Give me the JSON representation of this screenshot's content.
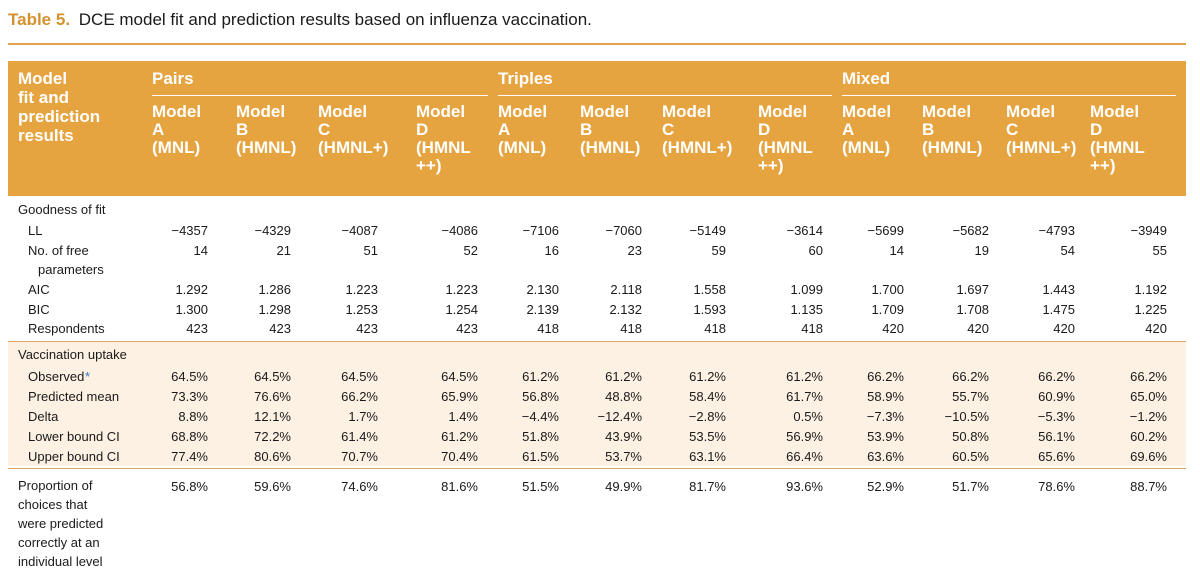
{
  "caption": {
    "number": "Table 5.",
    "text": "DCE model fit and prediction results based on influenza vaccination."
  },
  "header": {
    "stub": "Model\nfit and\nprediction\nresults",
    "groups": [
      "Pairs",
      "Triples",
      "Mixed"
    ],
    "columns": [
      "Model\nA\n(MNL)",
      "Model\nB\n(HMNL)",
      "Model\nC\n(HMNL+)",
      "Model\nD\n(HMNL\n++)",
      "Model\nA\n(MNL)",
      "Model\nB\n(HMNL)",
      "Model\nC\n(HMNL+)",
      "Model\nD\n(HMNL\n++)",
      "Model\nA\n(MNL)",
      "Model\nB\n(HMNL)",
      "Model\nC\n(HMNL+)",
      "Model\nD\n(HMNL\n++)"
    ]
  },
  "goodness": {
    "title": "Goodness of fit",
    "rows": [
      {
        "label": "LL",
        "values": [
          "−4357",
          "−4329",
          "−4087",
          "−4086",
          "−7106",
          "−7060",
          "−5149",
          "−3614",
          "−5699",
          "−5682",
          "−4793",
          "−3949"
        ]
      },
      {
        "label": "No. of free",
        "label2": "parameters",
        "values": [
          "14",
          "21",
          "51",
          "52",
          "16",
          "23",
          "59",
          "60",
          "14",
          "19",
          "54",
          "55"
        ]
      },
      {
        "label": "AIC",
        "values": [
          "1.292",
          "1.286",
          "1.223",
          "1.223",
          "2.130",
          "2.118",
          "1.558",
          "1.099",
          "1.700",
          "1.697",
          "1.443",
          "1.192"
        ]
      },
      {
        "label": "BIC",
        "values": [
          "1.300",
          "1.298",
          "1.253",
          "1.254",
          "2.139",
          "2.132",
          "1.593",
          "1.135",
          "1.709",
          "1.708",
          "1.475",
          "1.225"
        ]
      },
      {
        "label": "Respondents",
        "values": [
          "423",
          "423",
          "423",
          "423",
          "418",
          "418",
          "418",
          "418",
          "420",
          "420",
          "420",
          "420"
        ]
      }
    ]
  },
  "uptake": {
    "title": "Vaccination uptake",
    "rows": [
      {
        "label": "Observed",
        "mark": "*",
        "values": [
          "64.5%",
          "64.5%",
          "64.5%",
          "64.5%",
          "61.2%",
          "61.2%",
          "61.2%",
          "61.2%",
          "66.2%",
          "66.2%",
          "66.2%",
          "66.2%"
        ]
      },
      {
        "label": "Predicted mean",
        "values": [
          "73.3%",
          "76.6%",
          "66.2%",
          "65.9%",
          "56.8%",
          "48.8%",
          "58.4%",
          "61.7%",
          "58.9%",
          "55.7%",
          "60.9%",
          "65.0%"
        ]
      },
      {
        "label": "Delta",
        "values": [
          "8.8%",
          "12.1%",
          "1.7%",
          "1.4%",
          "−4.4%",
          "−12.4%",
          "−2.8%",
          "0.5%",
          "−7.3%",
          "−10.5%",
          "−5.3%",
          "−1.2%"
        ]
      },
      {
        "label": "Lower bound CI",
        "values": [
          "68.8%",
          "72.2%",
          "61.4%",
          "61.2%",
          "51.8%",
          "43.9%",
          "53.5%",
          "56.9%",
          "53.9%",
          "50.8%",
          "56.1%",
          "60.2%"
        ]
      },
      {
        "label": "Upper bound CI",
        "values": [
          "77.4%",
          "80.6%",
          "70.7%",
          "70.4%",
          "61.5%",
          "53.7%",
          "63.1%",
          "66.4%",
          "63.6%",
          "60.5%",
          "65.6%",
          "69.6%"
        ]
      }
    ]
  },
  "proportion": {
    "label": "Proportion of\nchoices that\nwere predicted\ncorrectly at an\nindividual level",
    "values": [
      "56.8%",
      "59.6%",
      "74.6%",
      "81.6%",
      "51.5%",
      "49.9%",
      "81.7%",
      "93.6%",
      "52.9%",
      "51.7%",
      "78.6%",
      "88.7%"
    ]
  },
  "colors": {
    "header_bg": "#e6a441",
    "band_bg": "#fcf1e3",
    "caption_accent": "#d4912f",
    "footnote_mark": "#2b78c2"
  }
}
